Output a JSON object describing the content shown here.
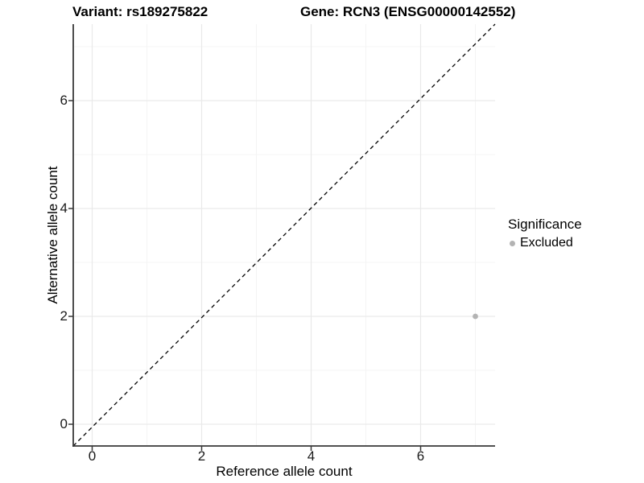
{
  "header": {
    "variant_title": "Variant: rs189275822",
    "gene_title": "Gene: RCN3 (ENSG00000142552)"
  },
  "chart_data": {
    "type": "scatter",
    "title": "Variant: rs189275822   Gene: RCN3 (ENSG00000142552)",
    "xlabel": "Reference allele count",
    "ylabel": "Alternative allele count",
    "x_ticks": [
      0,
      2,
      4,
      6
    ],
    "y_ticks": [
      0,
      2,
      4,
      6
    ],
    "x_minor_ticks": [
      1,
      3,
      5,
      7
    ],
    "y_minor_ticks": [
      1,
      3,
      5,
      7
    ],
    "xlim": [
      -0.35,
      7.35
    ],
    "ylim": [
      -0.43,
      7.4
    ],
    "grid": "major and minor, light gray on white",
    "points": [
      {
        "x": 7,
        "y": 2,
        "significance": "Excluded"
      }
    ],
    "reference_line": {
      "kind": "identity y = x",
      "style": "dashed",
      "color": "#000000"
    },
    "legend": {
      "position": "right",
      "title": "Significance",
      "items": [
        {
          "label": "Excluded",
          "color": "#b3b3b3",
          "marker": "circle"
        }
      ]
    },
    "colors": {
      "excluded_point": "#b3b3b3",
      "axis_line": "#383838",
      "tick_label": "#1a1a1a",
      "grid_major": "#e9e9e9",
      "grid_minor": "#f4f4f4",
      "background": "#ffffff"
    }
  }
}
